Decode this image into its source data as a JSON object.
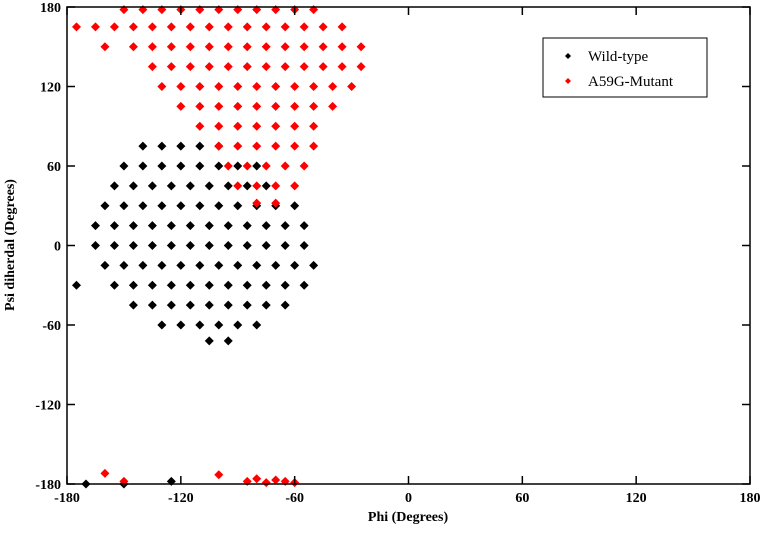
{
  "chart_data": {
    "type": "scatter",
    "xlabel": "Phi (Degrees)",
    "ylabel": "Psi diherdal (Degrees)",
    "xlim": [
      -180,
      180
    ],
    "ylim": [
      -180,
      180
    ],
    "xticks": [
      -180,
      -120,
      -60,
      0,
      60,
      120,
      180
    ],
    "yticks": [
      -180,
      -120,
      -60,
      0,
      60,
      120,
      180
    ],
    "legend": "upper right",
    "series": [
      {
        "name": "Wild-type",
        "color": "#000000",
        "x": [
          -140,
          -130,
          -120,
          -110,
          -100,
          -150,
          -140,
          -130,
          -120,
          -110,
          -100,
          -90,
          -80,
          -155,
          -145,
          -135,
          -125,
          -115,
          -105,
          -95,
          -85,
          -75,
          -160,
          -150,
          -140,
          -130,
          -120,
          -110,
          -100,
          -90,
          -80,
          -70,
          -60,
          -165,
          -155,
          -145,
          -135,
          -125,
          -115,
          -105,
          -95,
          -85,
          -75,
          -65,
          -55,
          -165,
          -155,
          -145,
          -135,
          -125,
          -115,
          -105,
          -95,
          -85,
          -75,
          -65,
          -55,
          -160,
          -150,
          -140,
          -130,
          -120,
          -110,
          -100,
          -90,
          -80,
          -70,
          -60,
          -50,
          -155,
          -145,
          -135,
          -125,
          -115,
          -105,
          -95,
          -85,
          -75,
          -65,
          -55,
          -145,
          -135,
          -125,
          -115,
          -105,
          -95,
          -85,
          -75,
          -65,
          -130,
          -120,
          -110,
          -100,
          -90,
          -80,
          -105,
          -95,
          -175,
          -170,
          -150,
          -125
        ],
        "values": [
          75,
          75,
          75,
          75,
          75,
          60,
          60,
          60,
          60,
          60,
          60,
          60,
          60,
          45,
          45,
          45,
          45,
          45,
          45,
          45,
          45,
          45,
          30,
          30,
          30,
          30,
          30,
          30,
          30,
          30,
          30,
          30,
          30,
          15,
          15,
          15,
          15,
          15,
          15,
          15,
          15,
          15,
          15,
          15,
          15,
          0,
          0,
          0,
          0,
          0,
          0,
          0,
          0,
          0,
          0,
          0,
          0,
          -15,
          -15,
          -15,
          -15,
          -15,
          -15,
          -15,
          -15,
          -15,
          -15,
          -15,
          -15,
          -30,
          -30,
          -30,
          -30,
          -30,
          -30,
          -30,
          -30,
          -30,
          -30,
          -30,
          -45,
          -45,
          -45,
          -45,
          -45,
          -45,
          -45,
          -45,
          -45,
          -60,
          -60,
          -60,
          -60,
          -60,
          -60,
          -72,
          -72,
          -30,
          -180,
          -180,
          -178
        ]
      },
      {
        "name": "A59G-Mutant",
        "color": "#ff0000",
        "x": [
          -150,
          -140,
          -130,
          -120,
          -110,
          -100,
          -90,
          -80,
          -70,
          -60,
          -50,
          -175,
          -165,
          -155,
          -145,
          -135,
          -125,
          -115,
          -105,
          -95,
          -85,
          -75,
          -65,
          -55,
          -45,
          -35,
          -160,
          -145,
          -135,
          -125,
          -115,
          -105,
          -95,
          -85,
          -75,
          -65,
          -55,
          -45,
          -35,
          -25,
          -135,
          -125,
          -115,
          -105,
          -95,
          -85,
          -75,
          -65,
          -55,
          -45,
          -35,
          -25,
          -130,
          -120,
          -110,
          -100,
          -90,
          -80,
          -70,
          -60,
          -50,
          -40,
          -30,
          -120,
          -110,
          -100,
          -90,
          -80,
          -70,
          -60,
          -50,
          -40,
          -110,
          -100,
          -90,
          -80,
          -70,
          -60,
          -50,
          -100,
          -90,
          -80,
          -70,
          -60,
          -50,
          -95,
          -85,
          -75,
          -65,
          -55,
          -90,
          -80,
          -70,
          -60,
          -80,
          -70,
          -160,
          -150,
          -100,
          -85,
          -80,
          -75,
          -70,
          -65,
          -60
        ],
        "values": [
          178,
          178,
          178,
          178,
          178,
          178,
          178,
          178,
          178,
          178,
          178,
          165,
          165,
          165,
          165,
          165,
          165,
          165,
          165,
          165,
          165,
          165,
          165,
          165,
          165,
          165,
          150,
          150,
          150,
          150,
          150,
          150,
          150,
          150,
          150,
          150,
          150,
          150,
          150,
          150,
          135,
          135,
          135,
          135,
          135,
          135,
          135,
          135,
          135,
          135,
          135,
          135,
          120,
          120,
          120,
          120,
          120,
          120,
          120,
          120,
          120,
          120,
          120,
          105,
          105,
          105,
          105,
          105,
          105,
          105,
          105,
          105,
          90,
          90,
          90,
          90,
          90,
          90,
          90,
          75,
          75,
          75,
          75,
          75,
          75,
          60,
          60,
          60,
          60,
          60,
          45,
          45,
          45,
          45,
          32,
          32,
          -172,
          -178,
          -173,
          -178,
          -176,
          -179,
          -177,
          -178,
          -179
        ]
      }
    ]
  }
}
